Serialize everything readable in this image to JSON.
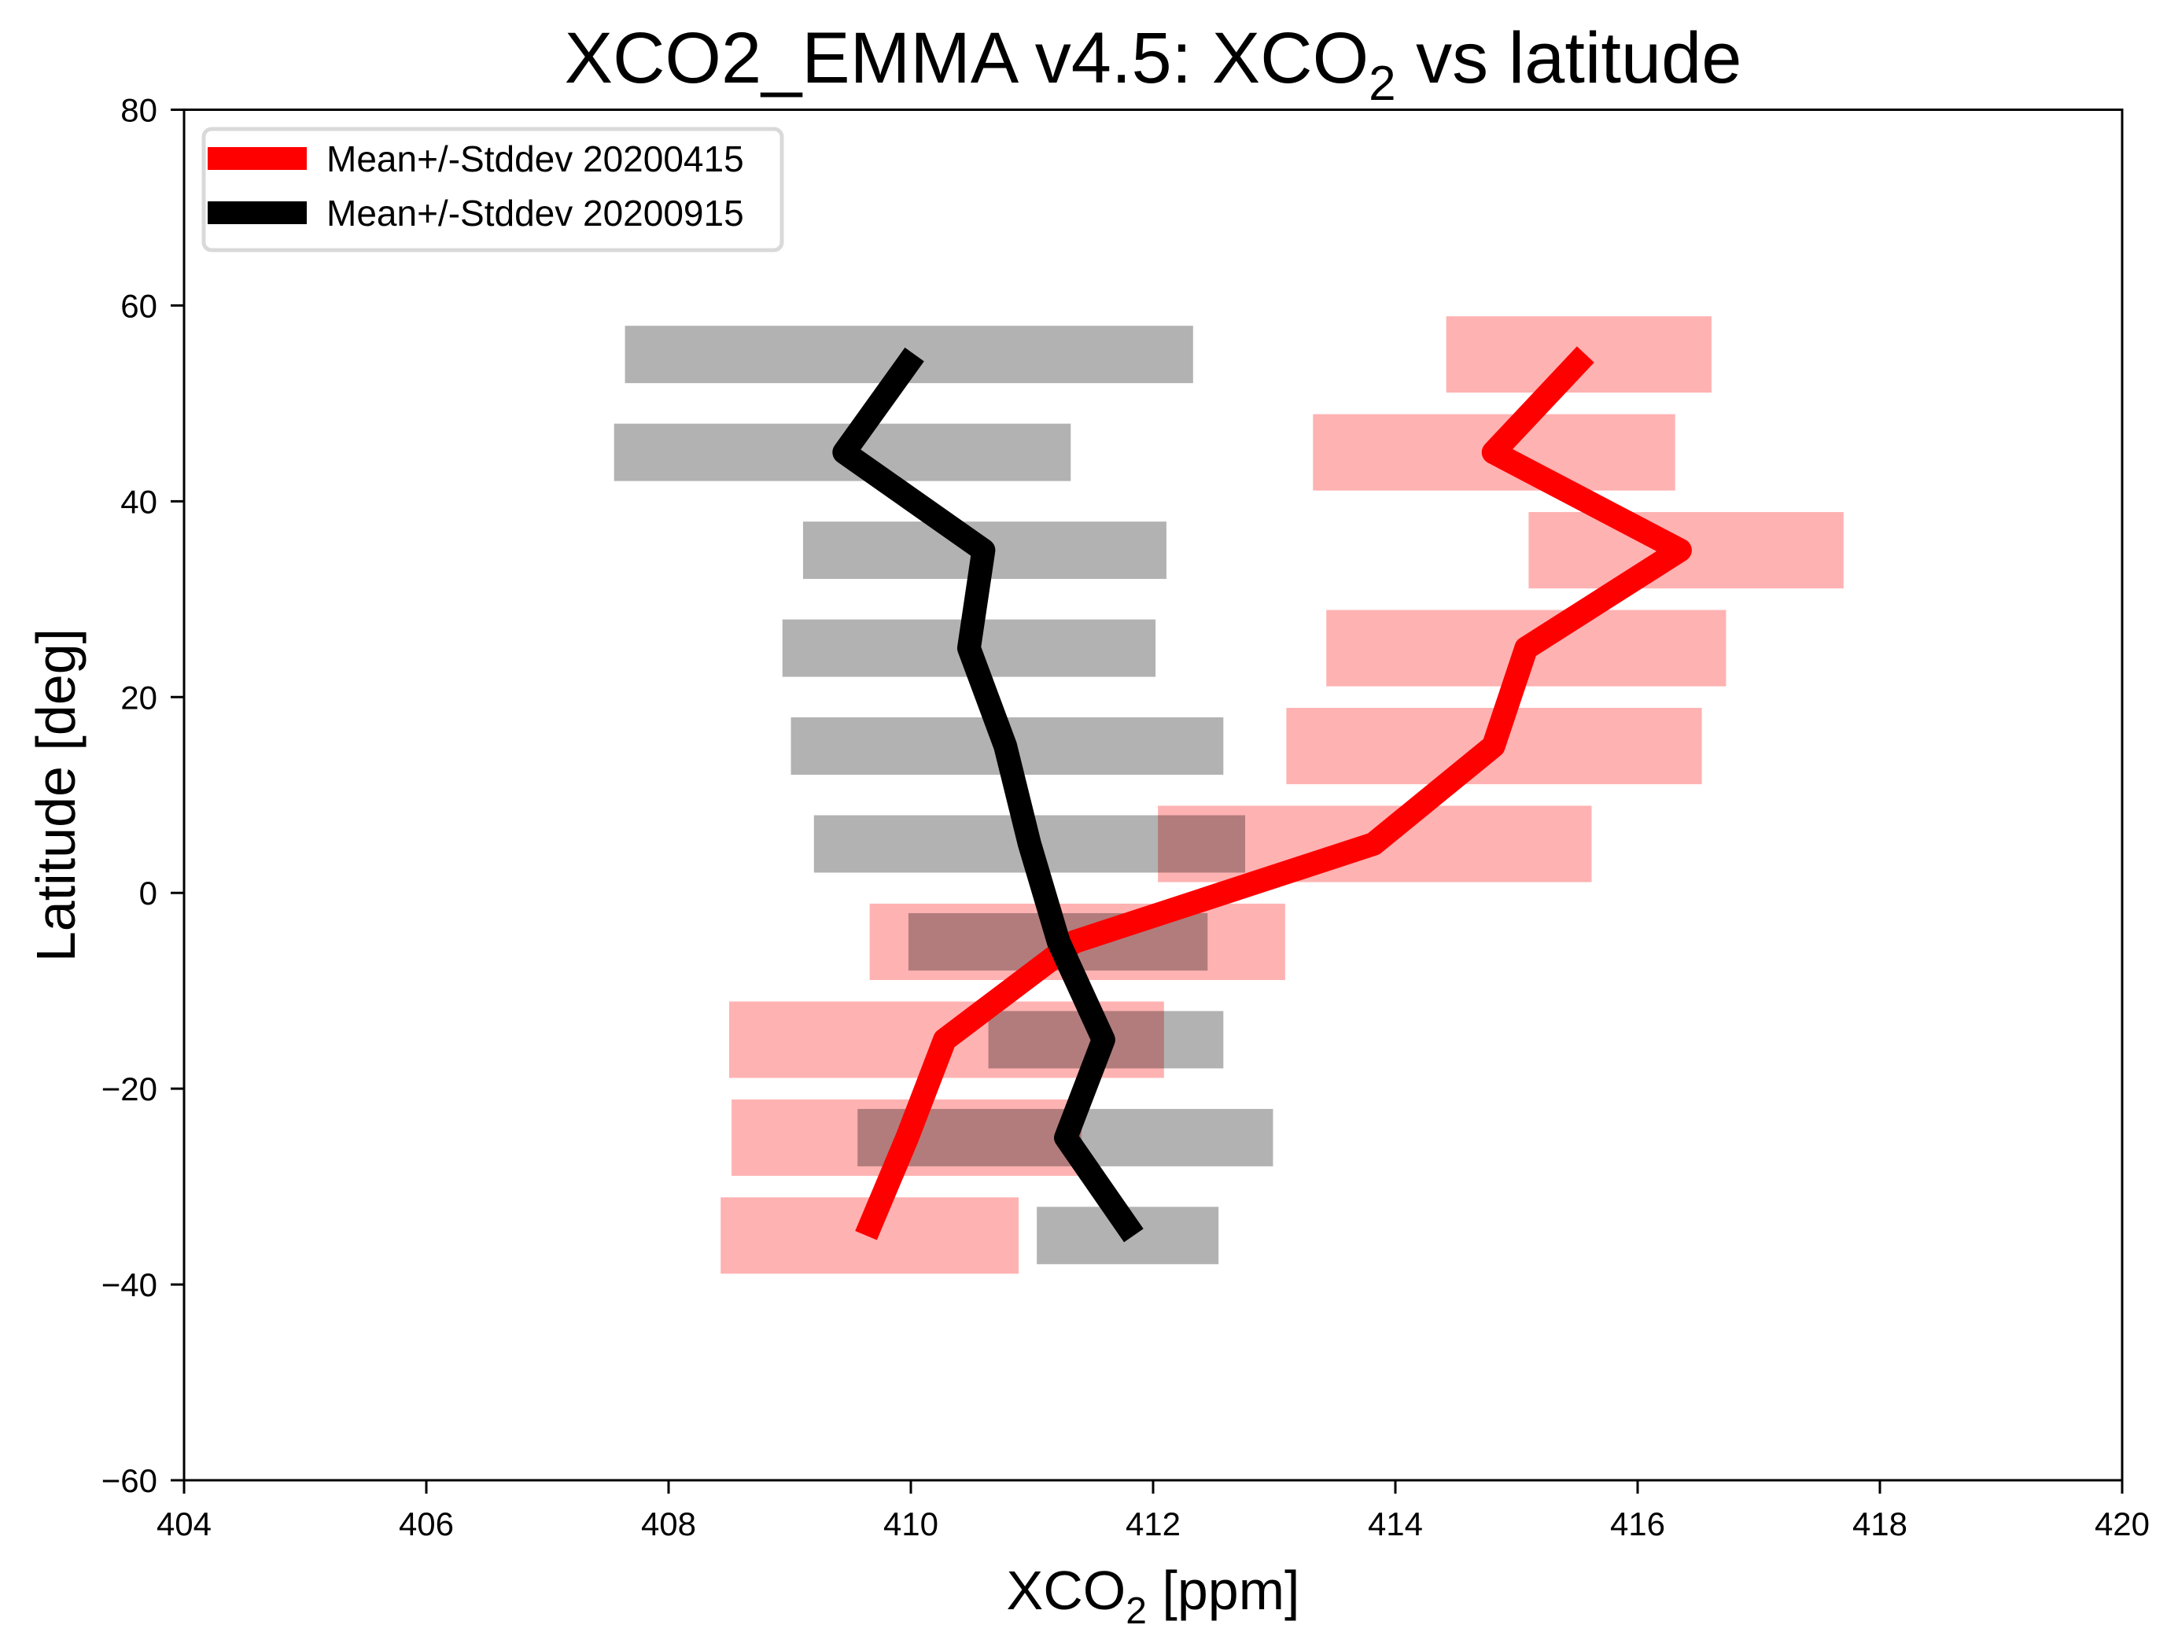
{
  "chart_data": {
    "type": "line",
    "title": "XCO2_EMMA v4.5: XCO₂ vs latitude",
    "title_parts": {
      "main": "XCO2_EMMA v4.5: XCO",
      "sub": "2",
      "rest": " vs latitude"
    },
    "xlabel": "XCO₂ [ppm]",
    "xlabel_parts": {
      "main": "XCO",
      "sub": "2",
      "rest": " [ppm]"
    },
    "ylabel": "Latitude [deg]",
    "xlim": [
      404,
      420
    ],
    "ylim": [
      -60,
      80
    ],
    "xticks": [
      404,
      406,
      408,
      410,
      412,
      414,
      416,
      418,
      420
    ],
    "yticks": [
      -60,
      -40,
      -20,
      0,
      20,
      40,
      60,
      80
    ],
    "grid": false,
    "legend_position": "upper left",
    "latitudes": [
      55,
      45,
      35,
      25,
      15,
      5,
      -5,
      -15,
      -25,
      -35
    ],
    "series": [
      {
        "name": "Mean+/-Stddev 20200415",
        "line_color": "#ff0000",
        "band_color": "#ff0000",
        "band_opacity": 0.3,
        "band_half_height_deg": 3.9,
        "mean": [
          415.57,
          414.81,
          416.35,
          415.08,
          414.81,
          413.82,
          411.35,
          410.28,
          409.97,
          409.63
        ],
        "lower": [
          414.42,
          413.32,
          415.1,
          413.43,
          413.1,
          412.04,
          409.66,
          408.5,
          408.52,
          408.43
        ],
        "upper": [
          416.61,
          416.31,
          417.7,
          416.73,
          416.53,
          415.62,
          413.09,
          412.09,
          411.41,
          410.89
        ]
      },
      {
        "name": "Mean+/-Stddev 20200915",
        "line_color": "#000000",
        "band_color": "#000000",
        "band_opacity": 0.3,
        "band_half_height_deg": 2.93,
        "mean": [
          410.03,
          409.45,
          410.6,
          410.48,
          410.78,
          410.98,
          411.22,
          411.59,
          411.28,
          411.84
        ],
        "lower": [
          407.64,
          407.55,
          409.11,
          408.94,
          409.01,
          409.2,
          409.98,
          410.64,
          409.56,
          411.04
        ],
        "upper": [
          412.33,
          411.32,
          412.11,
          412.02,
          412.58,
          412.76,
          412.45,
          412.58,
          412.99,
          412.54
        ]
      }
    ]
  }
}
